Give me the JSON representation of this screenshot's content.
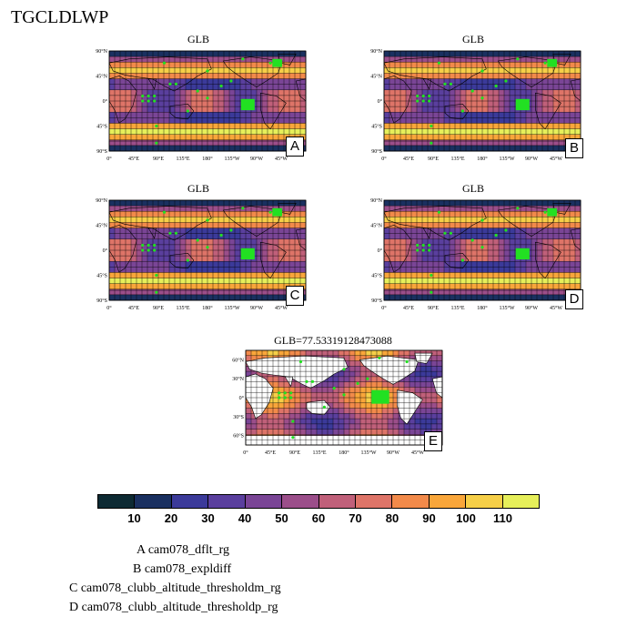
{
  "title": "TGCLDLWP",
  "panels": [
    {
      "id": "A",
      "title": "GLB",
      "letter": "A"
    },
    {
      "id": "B",
      "title": "GLB",
      "letter": "B"
    },
    {
      "id": "C",
      "title": "GLB",
      "letter": "C"
    },
    {
      "id": "D",
      "title": "GLB",
      "letter": "D"
    },
    {
      "id": "E",
      "title": "GLB=77.53319128473088",
      "letter": "E"
    }
  ],
  "lat_labels_main": [
    "90°N",
    "45°N",
    "0°",
    "45°S",
    "90°S"
  ],
  "lat_labels_diff": [
    "60°N",
    "30°N",
    "0°",
    "30°S",
    "60°S"
  ],
  "lon_labels": [
    "0°",
    "45°E",
    "90°E",
    "135°E",
    "180°",
    "135°W",
    "90°W",
    "45°W"
  ],
  "colorbar": {
    "labels": [
      "10",
      "20",
      "30",
      "40",
      "50",
      "60",
      "70",
      "80",
      "90",
      "100",
      "110"
    ],
    "colors": [
      "#0d2a33",
      "#1a3060",
      "#3b3a9a",
      "#5a3f9e",
      "#7a4596",
      "#9b4e8a",
      "#c0607a",
      "#de7468",
      "#f28a4a",
      "#f9a63a",
      "#f6cf48",
      "#e6ef5a"
    ]
  },
  "legend": [
    "A  cam078_dflt_rg",
    "B  cam078_expldiff",
    "C  cam078_clubb_altitude_thresholdm_rg",
    "D  cam078_clubb_altitude_thresholdp_rg"
  ]
}
